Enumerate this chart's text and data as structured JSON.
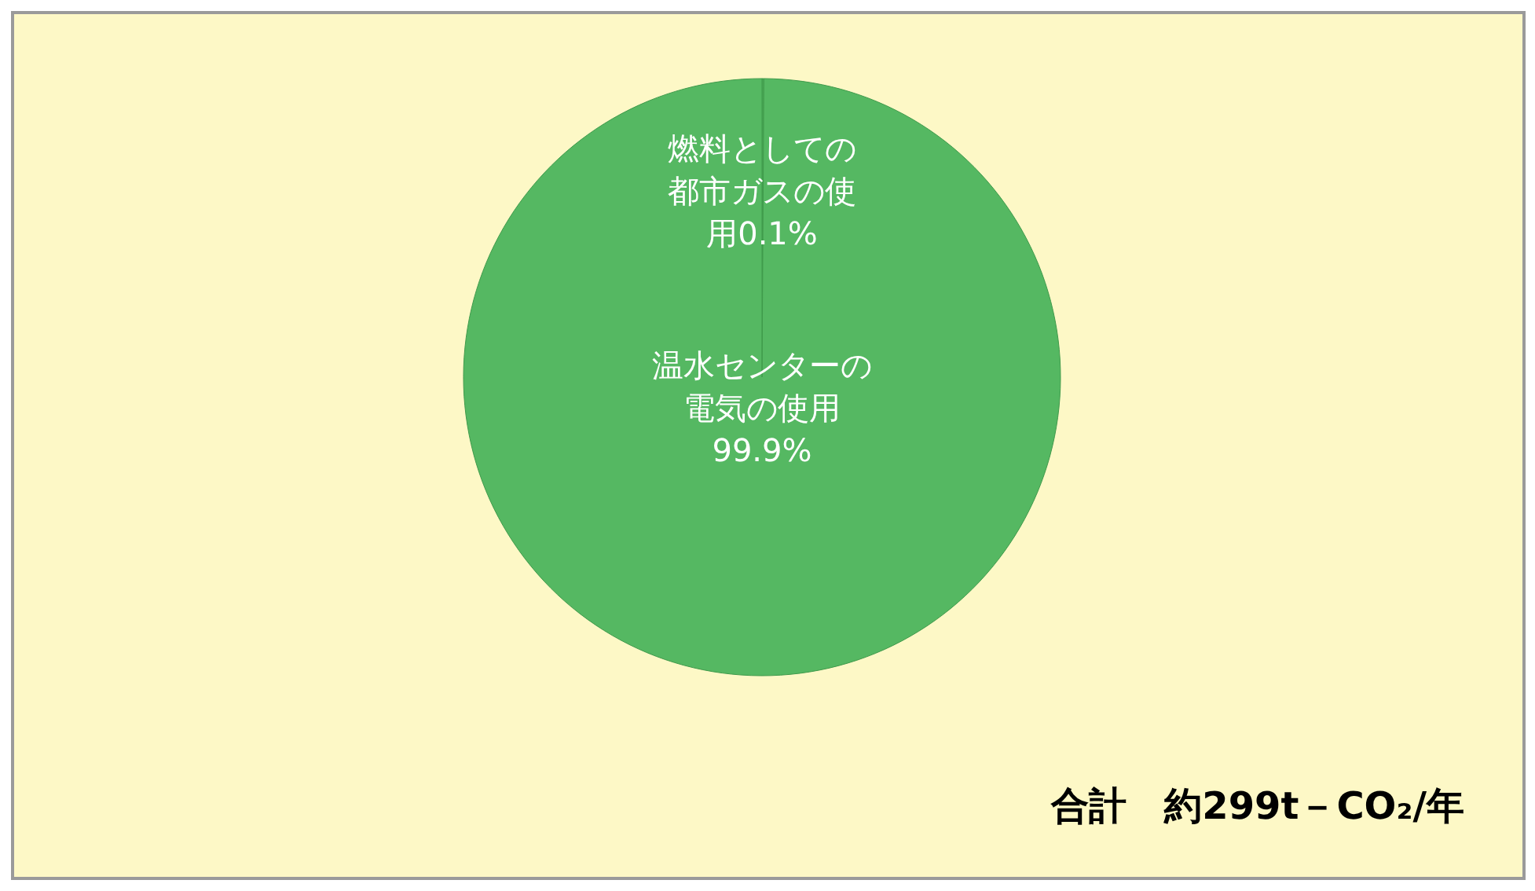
{
  "chart_data": {
    "type": "pie",
    "categories": [
      "燃料としての都市ガスの使用",
      "温水センターの電気の使用"
    ],
    "values": [
      0.1,
      99.9
    ],
    "value_labels": [
      "0.1%",
      "99.9%"
    ],
    "colors": [
      "#4fae5a",
      "#55b862"
    ],
    "annotations": [
      "合計　約299t－CO₂/年"
    ]
  }
}
